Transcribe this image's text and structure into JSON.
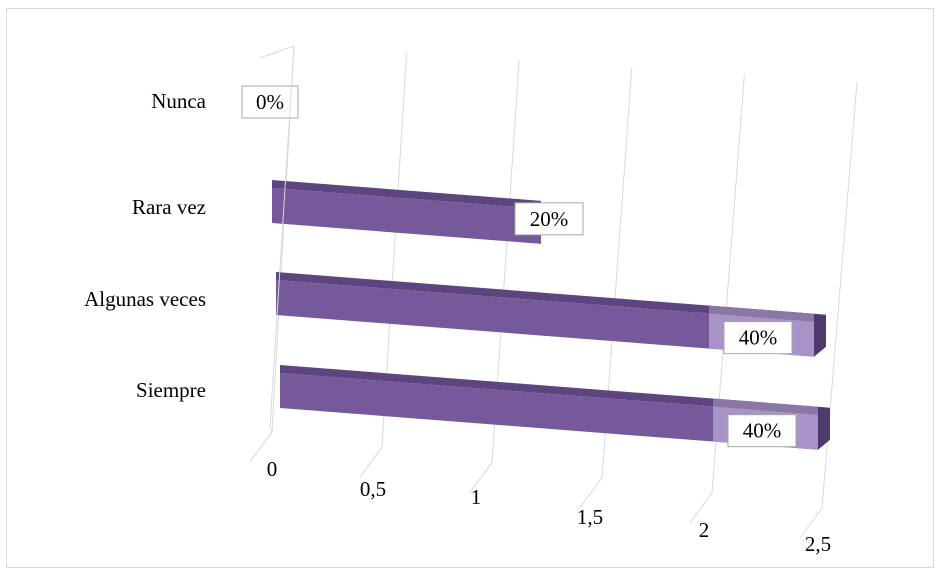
{
  "chart_data": {
    "type": "bar",
    "orientation": "horizontal",
    "style": "3d",
    "categories": [
      "Nunca",
      "Rara vez",
      "Algunas veces",
      "Siempre"
    ],
    "values": [
      0,
      1,
      2,
      2
    ],
    "data_labels": [
      "0%",
      "20%",
      "40%",
      "40%"
    ],
    "x_ticks": [
      "0",
      "0,5",
      "1",
      "1,5",
      "2",
      "2,5"
    ],
    "xlim": [
      0,
      2.5
    ],
    "grid": true,
    "legend": "none",
    "colors": {
      "bar": "#76599a",
      "bar_highlight": "#a893c6",
      "grid": "#d9d9d9"
    }
  }
}
